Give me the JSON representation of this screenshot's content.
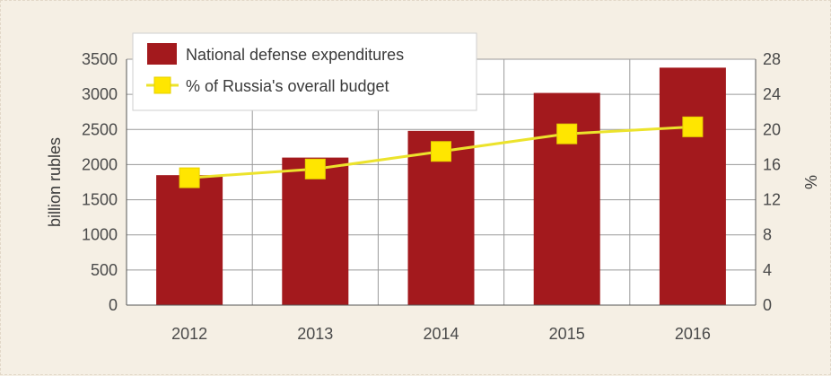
{
  "chart_data": {
    "type": "bar",
    "categories": [
      "2012",
      "2013",
      "2014",
      "2015",
      "2016"
    ],
    "series": [
      {
        "name": "National defense expenditures",
        "type": "bar",
        "axis": "left",
        "color": "#a3191d",
        "values": [
          1850,
          2100,
          2480,
          3020,
          3380
        ]
      },
      {
        "name": "% of Russia's overall budget",
        "type": "line",
        "axis": "right",
        "color": "#ffe600",
        "line_color": "#ece32c",
        "values": [
          14.5,
          15.5,
          17.5,
          19.5,
          20.3
        ]
      }
    ],
    "ylabel": "billion rubles",
    "ylim": [
      0,
      3500
    ],
    "yticks": [
      "0",
      "500",
      "1000",
      "1500",
      "2000",
      "2500",
      "3000",
      "3500"
    ],
    "y2label": "%",
    "y2lim": [
      0,
      28
    ],
    "y2ticks": [
      "0",
      "4",
      "8",
      "12",
      "16",
      "20",
      "24",
      "28"
    ],
    "grid": true,
    "legend": "top-left"
  }
}
